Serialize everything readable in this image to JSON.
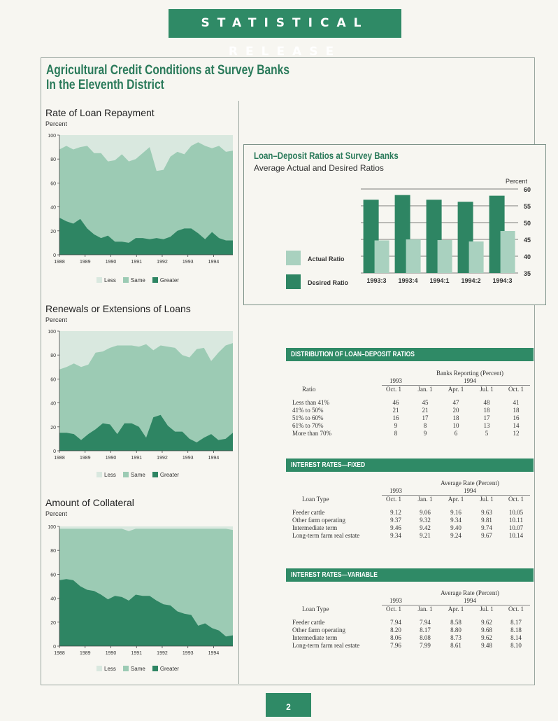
{
  "header": {
    "banner": "STATISTICAL RELEASE",
    "title_line1": "Agricultural Credit Conditions at Survey Banks",
    "title_line2": "In the Eleventh District",
    "page_number": "2"
  },
  "colors": {
    "less": "#d9e8df",
    "same": "#9ccbb4",
    "greater": "#2e8563",
    "accent": "#2f8a66"
  },
  "legend": {
    "less": "Less",
    "same": "Same",
    "greater": "Greater"
  },
  "chart_data": [
    {
      "type": "area",
      "title": "Rate of Loan Repayment",
      "ylabel": "Percent",
      "ylim": [
        0,
        100
      ],
      "yticks": [
        0,
        20,
        40,
        60,
        80,
        100
      ],
      "xticks": [
        "1988",
        "1989",
        "1990",
        "1991",
        "1992",
        "1993",
        "1994"
      ],
      "x_range": [
        1988,
        1994.75
      ],
      "series": [
        {
          "name": "Greater",
          "values": [
            31,
            28,
            26,
            30,
            22,
            17,
            14,
            16,
            11,
            11,
            10,
            14,
            14,
            13,
            14,
            13,
            15,
            20,
            22,
            22,
            18,
            13,
            19,
            14,
            12,
            12
          ]
        },
        {
          "name": "Same",
          "values": [
            88,
            91,
            88,
            90,
            91,
            85,
            85,
            78,
            79,
            84,
            78,
            80,
            85,
            90,
            70,
            71,
            82,
            86,
            84,
            91,
            94,
            91,
            89,
            91,
            86,
            87
          ]
        },
        {
          "name": "Less",
          "values": [
            100,
            100,
            100,
            100,
            100,
            100,
            100,
            100,
            100,
            100,
            100,
            100,
            100,
            100,
            100,
            100,
            100,
            100,
            100,
            100,
            100,
            100,
            100,
            100,
            100,
            100
          ]
        }
      ]
    },
    {
      "type": "area",
      "title": "Renewals or Extensions of Loans",
      "ylabel": "Percent",
      "ylim": [
        0,
        100
      ],
      "yticks": [
        0,
        20,
        40,
        60,
        80,
        100
      ],
      "xticks": [
        "1988",
        "1989",
        "1990",
        "1991",
        "1992",
        "1993",
        "1994"
      ],
      "x_range": [
        1988,
        1994.75
      ],
      "series": [
        {
          "name": "Greater",
          "values": [
            15,
            15,
            14,
            9,
            14,
            18,
            23,
            22,
            14,
            23,
            23,
            20,
            11,
            28,
            30,
            21,
            16,
            16,
            10,
            7,
            11,
            14,
            9,
            10,
            15
          ]
        },
        {
          "name": "Same",
          "values": [
            68,
            70,
            73,
            70,
            72,
            82,
            83,
            86,
            88,
            88,
            88,
            87,
            89,
            84,
            88,
            87,
            86,
            80,
            78,
            85,
            86,
            75,
            82,
            88,
            90
          ]
        },
        {
          "name": "Less",
          "values": [
            100,
            100,
            100,
            100,
            100,
            100,
            100,
            100,
            100,
            100,
            100,
            100,
            100,
            100,
            100,
            100,
            100,
            100,
            100,
            100,
            100,
            100,
            100,
            100,
            100
          ]
        }
      ]
    },
    {
      "type": "area",
      "title": "Amount of Collateral",
      "ylabel": "Percent",
      "ylim": [
        0,
        100
      ],
      "yticks": [
        0,
        20,
        40,
        60,
        80,
        100
      ],
      "xticks": [
        "1988",
        "1989",
        "1990",
        "1991",
        "1992",
        "1993",
        "1994"
      ],
      "x_range": [
        1988,
        1994.75
      ],
      "series": [
        {
          "name": "Greater",
          "values": [
            55,
            56,
            55,
            50,
            47,
            46,
            43,
            39,
            42,
            41,
            38,
            43,
            42,
            42,
            38,
            35,
            34,
            29,
            27,
            26,
            17,
            19,
            15,
            13,
            8,
            9
          ]
        },
        {
          "name": "Same",
          "values": [
            98,
            98,
            98,
            98,
            98,
            98,
            98,
            98,
            98,
            98,
            96,
            98,
            98,
            98,
            98,
            98,
            98,
            98,
            98,
            98,
            98,
            98,
            98,
            98,
            98,
            97
          ]
        },
        {
          "name": "Less",
          "values": [
            100,
            100,
            100,
            100,
            100,
            100,
            100,
            100,
            100,
            100,
            100,
            100,
            100,
            100,
            100,
            100,
            100,
            100,
            100,
            100,
            100,
            100,
            100,
            100,
            100,
            100
          ]
        }
      ]
    },
    {
      "type": "bar",
      "title": "Loan–Deposit Ratios at Survey Banks",
      "subtitle": "Average Actual and Desired Ratios",
      "ylabel": "Percent",
      "ylim": [
        35,
        60
      ],
      "yticks": [
        35,
        40,
        45,
        50,
        55,
        60
      ],
      "categories": [
        "1993:3",
        "1993:4",
        "1994:1",
        "1994:2",
        "1994:3"
      ],
      "series": [
        {
          "name": "Desired Ratio",
          "values": [
            56.8,
            58.2,
            56.8,
            56.2,
            58.0
          ]
        },
        {
          "name": "Actual Ratio",
          "values": [
            44.7,
            45.0,
            44.8,
            44.4,
            47.5
          ]
        }
      ]
    }
  ],
  "tables": {
    "distribution": {
      "heading": "DISTRIBUTION OF LOAN–DEPOSIT RATIOS",
      "group_label": "Banks Reporting (Percent)",
      "year1": "1993",
      "year2": "1994",
      "row_header": "Ratio",
      "columns": [
        "Oct. 1",
        "Jan. 1",
        "Apr. 1",
        "Jul. 1",
        "Oct. 1"
      ],
      "rows": [
        {
          "label": "Less than 41%",
          "values": [
            "46",
            "45",
            "47",
            "48",
            "41"
          ]
        },
        {
          "label": "41% to 50%",
          "values": [
            "21",
            "21",
            "20",
            "18",
            "18"
          ]
        },
        {
          "label": "51% to 60%",
          "values": [
            "16",
            "17",
            "18",
            "17",
            "16"
          ]
        },
        {
          "label": "61% to 70%",
          "values": [
            "9",
            "8",
            "10",
            "13",
            "14"
          ]
        },
        {
          "label": "More than 70%",
          "values": [
            "8",
            "9",
            "6",
            "5",
            "12"
          ]
        }
      ]
    },
    "fixed": {
      "heading": "INTEREST RATES—FIXED",
      "group_label": "Average Rate (Percent)",
      "year1": "1993",
      "year2": "1994",
      "row_header": "Loan Type",
      "columns": [
        "Oct. 1",
        "Jan. 1",
        "Apr. 1",
        "Jul. 1",
        "Oct. 1"
      ],
      "rows": [
        {
          "label": "Feeder cattle",
          "values": [
            "9.12",
            "9.06",
            "9.16",
            "9.63",
            "10.05"
          ]
        },
        {
          "label": "Other farm operating",
          "values": [
            "9.37",
            "9.32",
            "9.34",
            "9.81",
            "10.11"
          ]
        },
        {
          "label": "Intermediate term",
          "values": [
            "9.46",
            "9.42",
            "9.40",
            "9.74",
            "10.07"
          ]
        },
        {
          "label": "Long-term farm real estate",
          "values": [
            "9.34",
            "9.21",
            "9.24",
            "9.67",
            "10.14"
          ]
        }
      ]
    },
    "variable": {
      "heading": "INTEREST RATES—VARIABLE",
      "group_label": "Average Rate (Percent)",
      "year1": "1993",
      "year2": "1994",
      "row_header": "Loan Type",
      "columns": [
        "Oct. 1",
        "Jan. 1",
        "Apr. 1",
        "Jul. 1",
        "Oct. 1"
      ],
      "rows": [
        {
          "label": "Feeder cattle",
          "values": [
            "7.94",
            "7.94",
            "8.58",
            "9.62",
            "8.17"
          ]
        },
        {
          "label": "Other farm operating",
          "values": [
            "8.20",
            "8.17",
            "8.80",
            "9.68",
            "8.18"
          ]
        },
        {
          "label": "Intermediate term",
          "values": [
            "8.06",
            "8.08",
            "8.73",
            "9.62",
            "8.14"
          ]
        },
        {
          "label": "Long-term farm real estate",
          "values": [
            "7.96",
            "7.99",
            "8.61",
            "9.48",
            "8.10"
          ]
        }
      ]
    }
  }
}
